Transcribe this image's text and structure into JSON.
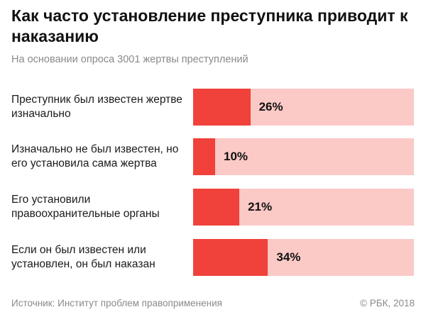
{
  "header": {
    "title": "Как часто установление преступника приводит к наказанию",
    "subtitle": "На основании опроса 3001 жертвы преступлений"
  },
  "chart_data": {
    "type": "bar",
    "orientation": "horizontal",
    "categories": [
      "Преступник был известен жертве изначально",
      "Изначально не был известен, но его установила сама жертва",
      "Его установили правоохранительные органы",
      "Если он был известен или установлен, он был наказан"
    ],
    "values": [
      26,
      10,
      21,
      34
    ],
    "value_labels": [
      "26%",
      "10%",
      "21%",
      "34%"
    ],
    "xlim": [
      0,
      100
    ],
    "unit": "%",
    "grid": false,
    "legend": false,
    "colors": {
      "bar": "#f0413a",
      "track": "#fbc9c6"
    }
  },
  "footer": {
    "source": "Источник: Институт проблем правоприменения",
    "copyright": "© РБК, 2018"
  }
}
